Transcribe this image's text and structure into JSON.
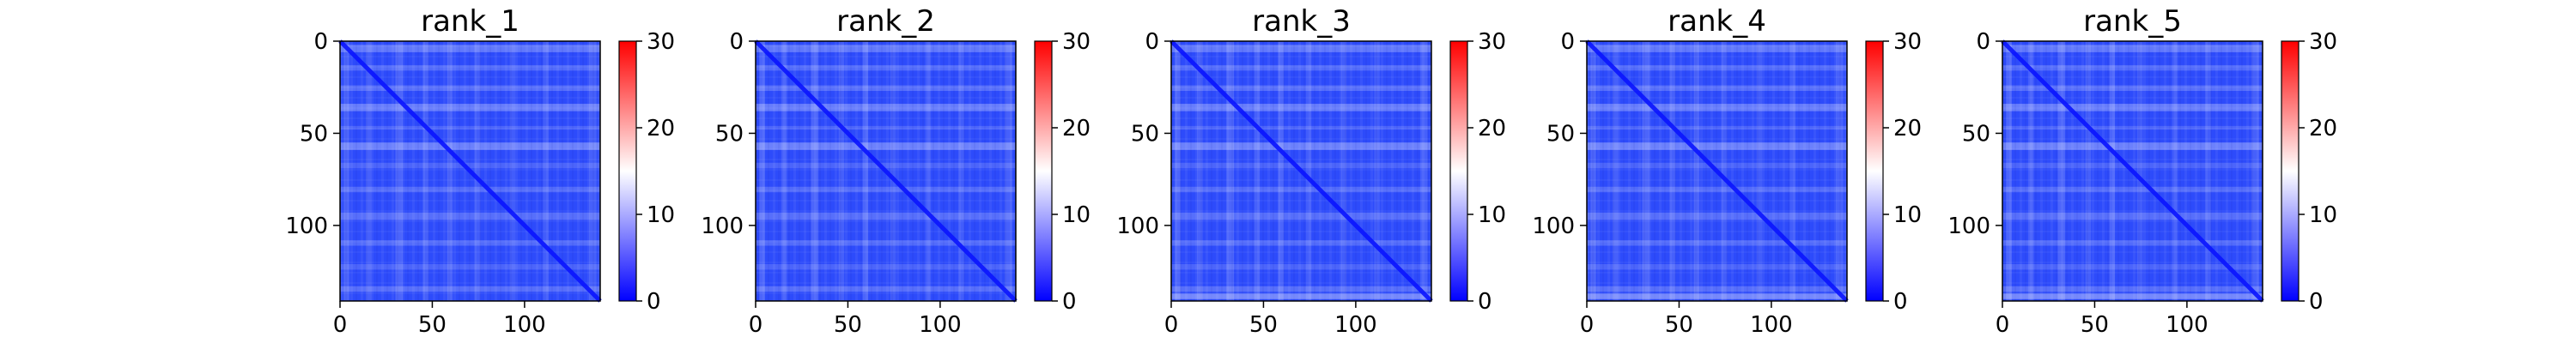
{
  "chart_data": [
    {
      "type": "heatmap",
      "title": "rank_1",
      "matrix_size": 141,
      "colormap": "bwr",
      "clim": [
        0,
        30
      ],
      "xticks": [
        0,
        50,
        100
      ],
      "yticks": [
        0,
        50,
        100
      ],
      "colorbar_ticks": [
        0,
        10,
        20,
        30
      ]
    },
    {
      "type": "heatmap",
      "title": "rank_2",
      "matrix_size": 141,
      "colormap": "bwr",
      "clim": [
        0,
        30
      ],
      "xticks": [
        0,
        50,
        100
      ],
      "yticks": [
        0,
        50,
        100
      ],
      "colorbar_ticks": [
        0,
        10,
        20,
        30
      ]
    },
    {
      "type": "heatmap",
      "title": "rank_3",
      "matrix_size": 141,
      "colormap": "bwr",
      "clim": [
        0,
        30
      ],
      "xticks": [
        0,
        50,
        100
      ],
      "yticks": [
        0,
        50,
        100
      ],
      "colorbar_ticks": [
        0,
        10,
        20,
        30
      ]
    },
    {
      "type": "heatmap",
      "title": "rank_4",
      "matrix_size": 141,
      "colormap": "bwr",
      "clim": [
        0,
        30
      ],
      "xticks": [
        0,
        50,
        100
      ],
      "yticks": [
        0,
        50,
        100
      ],
      "colorbar_ticks": [
        0,
        10,
        20,
        30
      ]
    },
    {
      "type": "heatmap",
      "title": "rank_5",
      "matrix_size": 141,
      "colormap": "bwr",
      "clim": [
        0,
        30
      ],
      "xticks": [
        0,
        50,
        100
      ],
      "yticks": [
        0,
        50,
        100
      ],
      "colorbar_ticks": [
        0,
        10,
        20,
        30
      ]
    }
  ],
  "colors": {
    "low": "#0000ff",
    "mid": "#ffffff",
    "high": "#ff0000",
    "axis": "#000000"
  }
}
